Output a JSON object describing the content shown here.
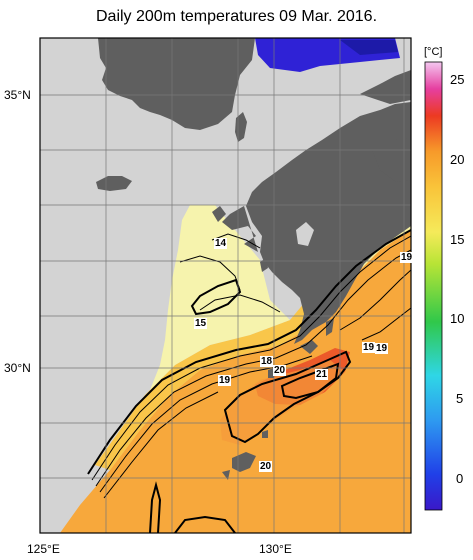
{
  "title": "Daily 200m temperatures 09 Mar. 2016.",
  "colorbar": {
    "unit": "[°C]",
    "ticks": [
      "25",
      "20",
      "15",
      "10",
      "5",
      "0"
    ]
  },
  "axes": {
    "lat_labels": [
      "35°N",
      "30°N"
    ],
    "lon_labels": [
      "125°E",
      "130°E"
    ]
  },
  "contour_labels": [
    "14",
    "15",
    "18",
    "19",
    "20",
    "21",
    "19",
    "19",
    "20",
    "19"
  ],
  "colors": {
    "land": "#5f5f5f",
    "no_data": "#d3d3d3",
    "cool": "#f6f3ad",
    "warm": "#f7a83c",
    "hot": "#e8452a",
    "cold_blue": "#2f22d6"
  }
}
